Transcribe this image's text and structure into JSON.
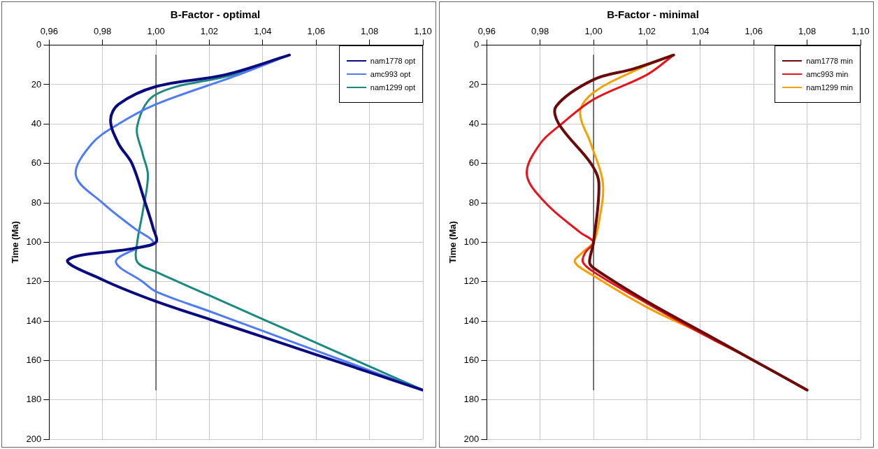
{
  "chart_data": [
    {
      "type": "line",
      "title": "B-Factor - optimal",
      "ylabel": "Time (Ma)",
      "xlim": [
        0.96,
        1.1
      ],
      "xticks": [
        {
          "value": 0.96,
          "label": "0,96"
        },
        {
          "value": 0.98,
          "label": "0,98"
        },
        {
          "value": 1,
          "label": "1,00"
        },
        {
          "value": 1.02,
          "label": "1,02"
        },
        {
          "value": 1.04,
          "label": "1,04"
        },
        {
          "value": 1.06,
          "label": "1,06"
        },
        {
          "value": 1.08,
          "label": "1,08"
        },
        {
          "value": 1.1,
          "label": "1,10"
        }
      ],
      "ylim": [
        200,
        0
      ],
      "yticks": [
        0,
        20,
        40,
        60,
        80,
        100,
        120,
        140,
        160,
        180,
        200
      ],
      "grid": true,
      "legend": "top right",
      "marker": "none",
      "line_style": "solid",
      "series": [
        {
          "name": "nam1778 opt",
          "color": "#0a0a80",
          "x": [
            1.05,
            1.026,
            1,
            0.986,
            0.983,
            0.986,
            0.991,
            0.996,
            0.999,
            1,
            0.992,
            0.967,
            0.98,
            1,
            1.02,
            1.04,
            1.06,
            1.08,
            1.1
          ],
          "values": [
            5,
            15,
            21,
            30,
            38,
            50,
            60,
            80,
            93,
            100,
            103,
            109,
            119,
            130,
            139,
            148,
            157,
            166,
            175
          ]
        },
        {
          "name": "amc993 opt",
          "color": "#4f7cf5",
          "x": [
            1.05,
            1.031,
            1,
            0.986,
            0.976,
            0.97,
            0.98,
            0.992,
            0.999,
            0.993,
            0.985,
            0.995,
            1,
            1.02,
            1.04,
            1.06,
            1.08,
            1.1
          ],
          "values": [
            5,
            15,
            30,
            40,
            50,
            66,
            80,
            93,
            100,
            103,
            110,
            120,
            125,
            135,
            145,
            155,
            165,
            175
          ]
        },
        {
          "name": "nam1299 opt",
          "color": "#1a8a80",
          "x": [
            1.05,
            1.029,
            1,
            0.993,
            0.995,
            0.997,
            0.995,
            0.993,
            0.993,
            1,
            1.02,
            1.04,
            1.06,
            1.08,
            1.1
          ],
          "values": [
            5,
            15,
            25,
            41,
            55,
            66,
            85,
            100,
            110,
            115,
            127,
            139,
            151,
            163,
            175
          ]
        },
        {
          "color": "#000000",
          "x": [
            1,
            1
          ],
          "values": [
            5,
            175
          ]
        }
      ]
    },
    {
      "type": "line",
      "title": "B-Factor - minimal",
      "ylabel": "Time (Ma)",
      "xlim": [
        0.96,
        1.1
      ],
      "xticks": [
        {
          "value": 0.96,
          "label": "0,96"
        },
        {
          "value": 0.98,
          "label": "0,98"
        },
        {
          "value": 1,
          "label": "1,00"
        },
        {
          "value": 1.02,
          "label": "1,02"
        },
        {
          "value": 1.04,
          "label": "1,04"
        },
        {
          "value": 1.06,
          "label": "1,06"
        },
        {
          "value": 1.08,
          "label": "1,08"
        },
        {
          "value": 1.1,
          "label": "1,10"
        }
      ],
      "ylim": [
        200,
        0
      ],
      "yticks": [
        0,
        20,
        40,
        60,
        80,
        100,
        120,
        140,
        160,
        180,
        200
      ],
      "grid": true,
      "legend": "top right",
      "marker": "none",
      "line_style": "solid",
      "series": [
        {
          "name": "nam1778 min",
          "color": "#6b0a0a",
          "x": [
            1.03,
            1.015,
            1,
            0.986,
            0.987,
            0.999,
            1.002,
            1,
            0.9985,
            1,
            1.02,
            1.04,
            1.06,
            1.08
          ],
          "values": [
            5,
            12,
            17.5,
            31,
            40,
            60,
            70,
            100,
            110,
            113,
            130,
            145,
            160,
            175
          ]
        },
        {
          "name": "amc993 min",
          "color": "#e8141c",
          "x": [
            1.03,
            1.02,
            1,
            0.988,
            0.98,
            0.975,
            0.982,
            0.995,
            1,
            0.997,
            0.996,
            1,
            1.02,
            1.04,
            1.06,
            1.08
          ],
          "values": [
            5,
            15,
            27.5,
            40,
            50,
            65.5,
            80,
            95,
            100,
            105,
            110,
            115,
            131,
            146,
            160,
            175
          ]
        },
        {
          "name": "nam1299 min",
          "color": "#f5a000",
          "x": [
            1.03,
            1.017,
            1,
            0.995,
            0.999,
            1.0035,
            1.002,
            1,
            0.996,
            0.993,
            1,
            1.02,
            1.04,
            1.06,
            1.08
          ],
          "values": [
            5,
            12,
            24,
            34,
            50,
            70,
            90,
            100,
            105,
            110,
            117,
            133,
            146,
            160,
            175
          ]
        },
        {
          "color": "#000000",
          "x": [
            1,
            1
          ],
          "values": [
            5,
            175
          ]
        }
      ]
    }
  ]
}
